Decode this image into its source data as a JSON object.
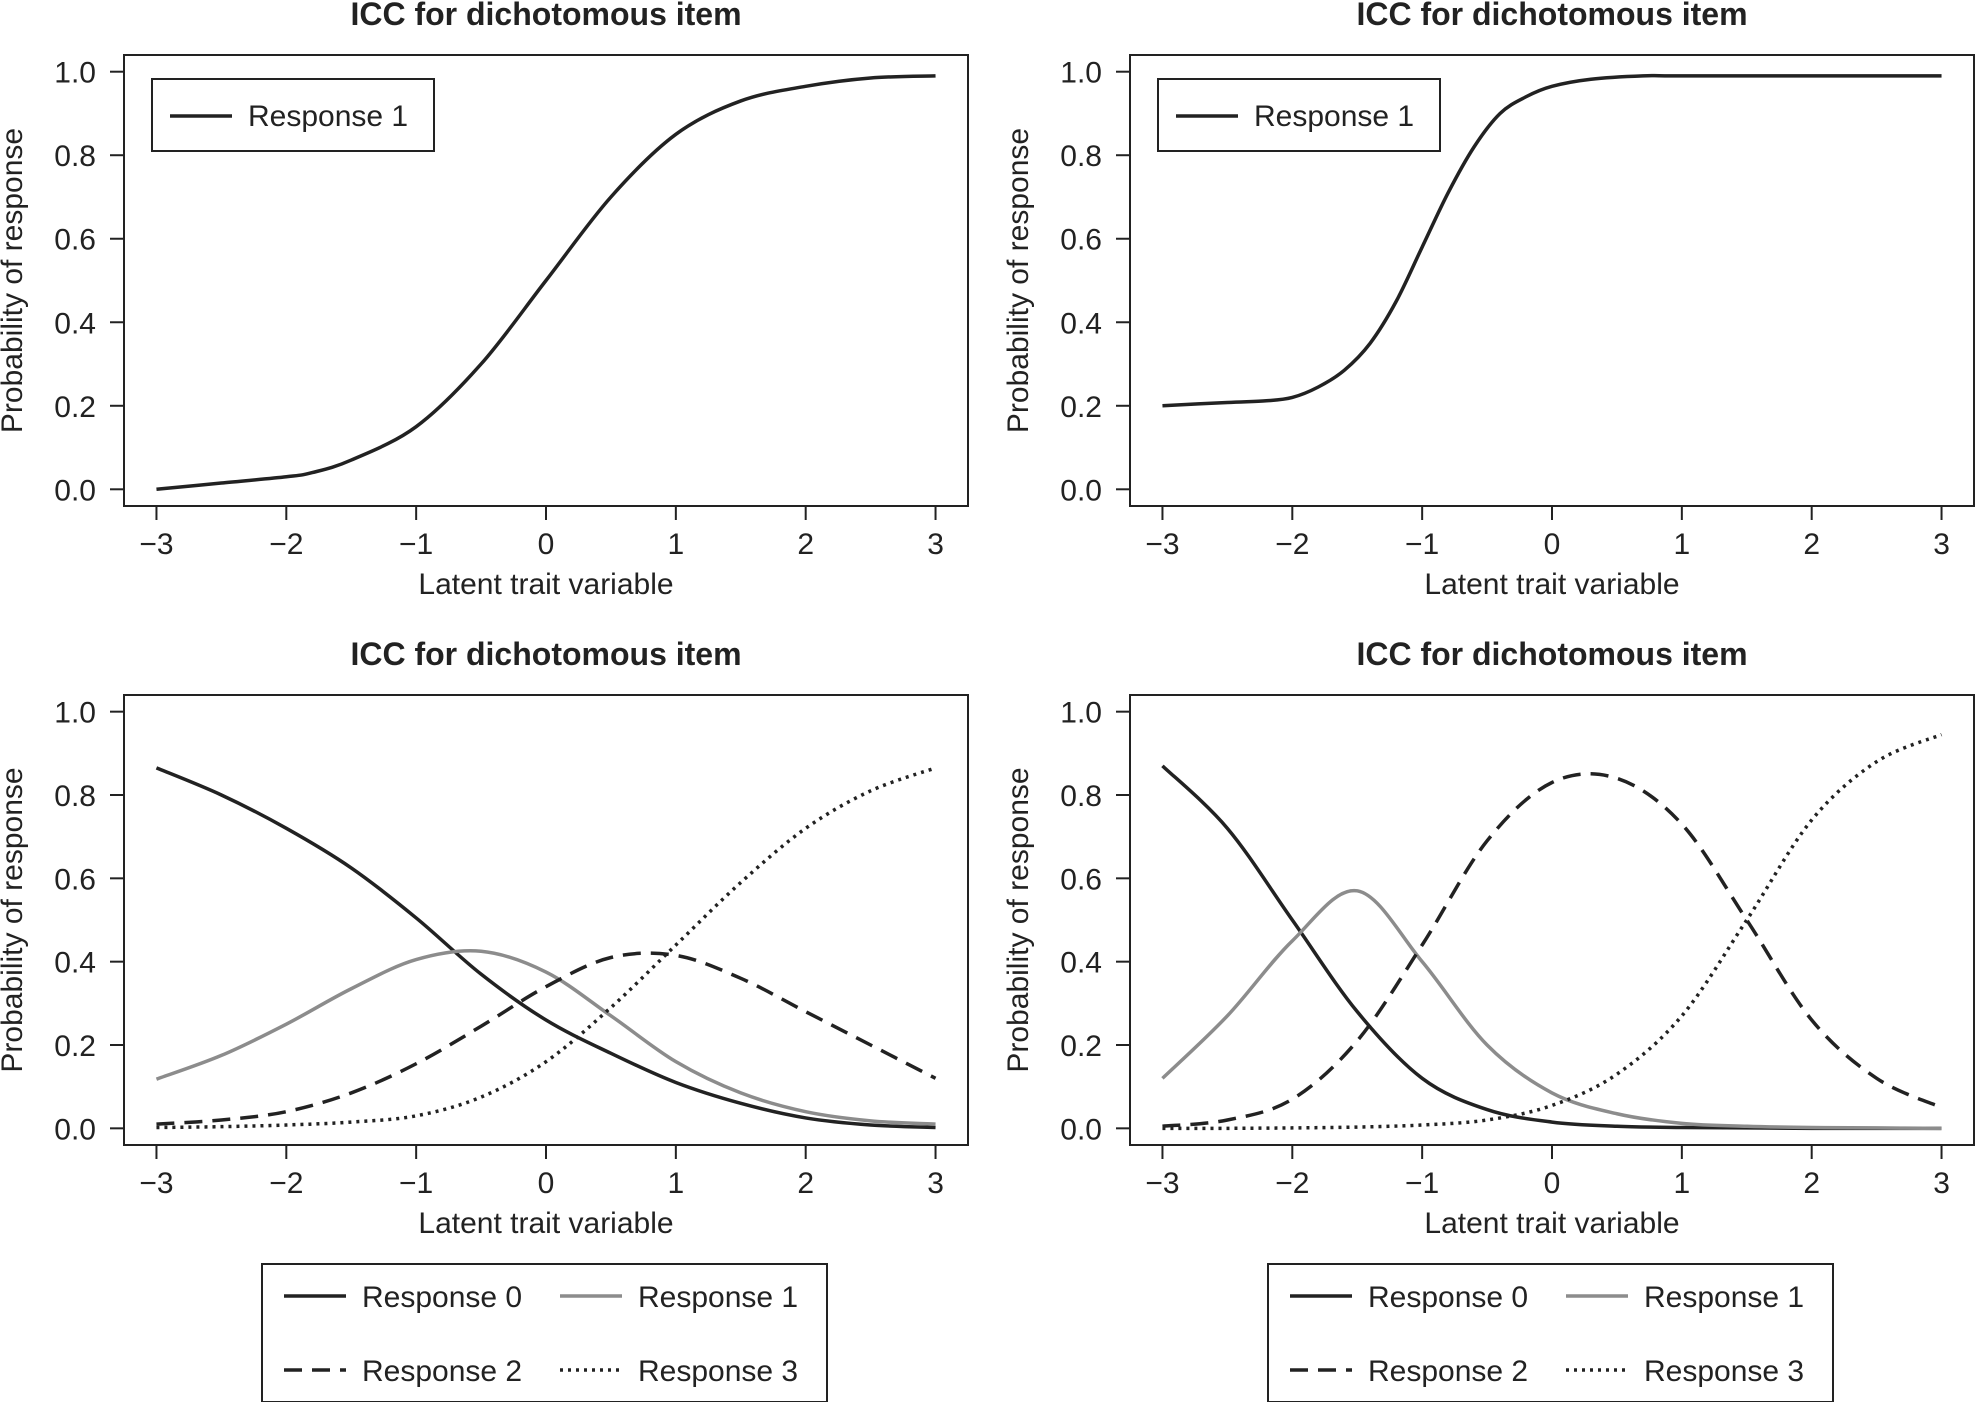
{
  "chart_data": [
    {
      "type": "line",
      "title": "ICC for dichotomous item",
      "xlabel": "Latent trait variable",
      "ylabel": "Probability of response",
      "xlim": [
        -3.25,
        3.25
      ],
      "ylim": [
        -0.04,
        1.04
      ],
      "xticks": [
        -3,
        -2,
        -1,
        0,
        1,
        2,
        3
      ],
      "xtick_labels": [
        "−3",
        "−2",
        "−1",
        "0",
        "1",
        "2",
        "3"
      ],
      "yticks": [
        0,
        0.2,
        0.4,
        0.6,
        0.8,
        1
      ],
      "ytick_labels": [
        "0.0",
        "0.2",
        "0.4",
        "0.6",
        "0.8",
        "1.0"
      ],
      "legend": {
        "placement": "top-left",
        "entries": [
          "Response 1"
        ]
      },
      "series": [
        {
          "name": "Response 1",
          "color": "#222222",
          "dash": "solid",
          "x": [
            -3,
            -2.5,
            -2,
            -1.8,
            -1.5,
            -1,
            -0.5,
            0,
            0.5,
            1,
            1.5,
            2,
            2.5,
            3
          ],
          "y": [
            0.0,
            0.015,
            0.03,
            0.04,
            0.07,
            0.15,
            0.3,
            0.5,
            0.7,
            0.85,
            0.93,
            0.965,
            0.985,
            0.99
          ]
        }
      ]
    },
    {
      "type": "line",
      "title": "ICC for dichotomous item",
      "xlabel": "Latent trait variable",
      "ylabel": "Probability of response",
      "xlim": [
        -3.25,
        3.25
      ],
      "ylim": [
        -0.04,
        1.04
      ],
      "xticks": [
        -3,
        -2,
        -1,
        0,
        1,
        2,
        3
      ],
      "xtick_labels": [
        "−3",
        "−2",
        "−1",
        "0",
        "1",
        "2",
        "3"
      ],
      "yticks": [
        0,
        0.2,
        0.4,
        0.6,
        0.8,
        1
      ],
      "ytick_labels": [
        "0.0",
        "0.2",
        "0.4",
        "0.6",
        "0.8",
        "1.0"
      ],
      "legend": {
        "placement": "top-left",
        "entries": [
          "Response 1"
        ]
      },
      "series": [
        {
          "name": "Response 1",
          "color": "#222222",
          "dash": "solid",
          "x": [
            -3,
            -2.5,
            -2.2,
            -2,
            -1.8,
            -1.6,
            -1.4,
            -1.2,
            -1,
            -0.8,
            -0.6,
            -0.4,
            -0.2,
            0,
            0.3,
            0.7,
            1,
            2,
            3
          ],
          "y": [
            0.2,
            0.208,
            0.212,
            0.22,
            0.245,
            0.285,
            0.35,
            0.45,
            0.58,
            0.71,
            0.82,
            0.9,
            0.94,
            0.965,
            0.982,
            0.99,
            0.99,
            0.99,
            0.99
          ]
        }
      ]
    },
    {
      "type": "line",
      "title": "ICC for dichotomous item",
      "xlabel": "Latent trait variable",
      "ylabel": "Probability of response",
      "xlim": [
        -3.25,
        3.25
      ],
      "ylim": [
        -0.04,
        1.04
      ],
      "xticks": [
        -3,
        -2,
        -1,
        0,
        1,
        2,
        3
      ],
      "xtick_labels": [
        "−3",
        "−2",
        "−1",
        "0",
        "1",
        "2",
        "3"
      ],
      "yticks": [
        0,
        0.2,
        0.4,
        0.6,
        0.8,
        1
      ],
      "ytick_labels": [
        "0.0",
        "0.2",
        "0.4",
        "0.6",
        "0.8",
        "1.0"
      ],
      "legend": {
        "placement": "bottom-outside",
        "entries": [
          "Response 0",
          "Response 1",
          "Response 2",
          "Response 3"
        ]
      },
      "series": [
        {
          "name": "Response 0",
          "color": "#222222",
          "dash": "solid",
          "x": [
            -3,
            -2.5,
            -2,
            -1.5,
            -1,
            -0.5,
            0,
            0.5,
            1,
            1.5,
            2,
            2.5,
            3
          ],
          "y": [
            0.865,
            0.8,
            0.72,
            0.625,
            0.505,
            0.37,
            0.26,
            0.18,
            0.11,
            0.06,
            0.025,
            0.008,
            0.002
          ]
        },
        {
          "name": "Response 1",
          "color": "#8c8c8c",
          "dash": "solid",
          "x": [
            -3,
            -2.5,
            -2,
            -1.5,
            -1,
            -0.5,
            0,
            0.5,
            1,
            1.5,
            2,
            2.5,
            3
          ],
          "y": [
            0.118,
            0.175,
            0.25,
            0.335,
            0.405,
            0.425,
            0.375,
            0.27,
            0.16,
            0.085,
            0.04,
            0.018,
            0.01
          ]
        },
        {
          "name": "Response 2",
          "color": "#222222",
          "dash": "dashed",
          "x": [
            -3,
            -2.5,
            -2,
            -1.5,
            -1,
            -0.5,
            0,
            0.5,
            1,
            1.5,
            2,
            2.5,
            3
          ],
          "y": [
            0.01,
            0.02,
            0.04,
            0.085,
            0.155,
            0.245,
            0.34,
            0.41,
            0.415,
            0.36,
            0.28,
            0.2,
            0.12
          ]
        },
        {
          "name": "Response 3",
          "color": "#222222",
          "dash": "dotted",
          "x": [
            -3,
            -2.5,
            -2,
            -1.5,
            -1,
            -0.5,
            0,
            0.5,
            1,
            1.5,
            2,
            2.5,
            3
          ],
          "y": [
            0.002,
            0.004,
            0.008,
            0.015,
            0.03,
            0.075,
            0.16,
            0.29,
            0.44,
            0.59,
            0.72,
            0.81,
            0.865
          ]
        }
      ]
    },
    {
      "type": "line",
      "title": "ICC for dichotomous item",
      "xlabel": "Latent trait variable",
      "ylabel": "Probability of response",
      "xlim": [
        -3.25,
        3.25
      ],
      "ylim": [
        -0.04,
        1.04
      ],
      "xticks": [
        -3,
        -2,
        -1,
        0,
        1,
        2,
        3
      ],
      "xtick_labels": [
        "−3",
        "−2",
        "−1",
        "0",
        "1",
        "2",
        "3"
      ],
      "yticks": [
        0,
        0.2,
        0.4,
        0.6,
        0.8,
        1
      ],
      "ytick_labels": [
        "0.0",
        "0.2",
        "0.4",
        "0.6",
        "0.8",
        "1.0"
      ],
      "legend": {
        "placement": "bottom-outside",
        "entries": [
          "Response 0",
          "Response 1",
          "Response 2",
          "Response 3"
        ]
      },
      "series": [
        {
          "name": "Response 0",
          "color": "#222222",
          "dash": "solid",
          "x": [
            -3,
            -2.5,
            -2,
            -1.5,
            -1,
            -0.5,
            0,
            0.5,
            1,
            1.5,
            2,
            2.5,
            3
          ],
          "y": [
            0.87,
            0.72,
            0.5,
            0.28,
            0.12,
            0.045,
            0.015,
            0.005,
            0.002,
            0.001,
            0.0,
            0.0,
            0.0
          ]
        },
        {
          "name": "Response 1",
          "color": "#8c8c8c",
          "dash": "solid",
          "x": [
            -3,
            -2.5,
            -2,
            -1.5,
            -1,
            -0.5,
            0,
            0.5,
            1,
            1.5,
            2,
            2.5,
            3
          ],
          "y": [
            0.12,
            0.27,
            0.45,
            0.57,
            0.4,
            0.2,
            0.085,
            0.035,
            0.012,
            0.005,
            0.002,
            0.001,
            0.0
          ]
        },
        {
          "name": "Response 2",
          "color": "#222222",
          "dash": "dashed",
          "x": [
            -3,
            -2.5,
            -2,
            -1.5,
            -1,
            -0.5,
            0,
            0.5,
            1,
            1.5,
            2,
            2.5,
            3
          ],
          "y": [
            0.005,
            0.02,
            0.07,
            0.21,
            0.44,
            0.69,
            0.83,
            0.84,
            0.73,
            0.5,
            0.26,
            0.12,
            0.05
          ]
        },
        {
          "name": "Response 3",
          "color": "#222222",
          "dash": "dotted",
          "x": [
            -3,
            -2.5,
            -2,
            -1.5,
            -1,
            -0.5,
            0,
            0.5,
            1,
            1.5,
            2,
            2.5,
            3
          ],
          "y": [
            0.0,
            0.0,
            0.001,
            0.003,
            0.008,
            0.02,
            0.055,
            0.13,
            0.27,
            0.5,
            0.74,
            0.88,
            0.945
          ]
        }
      ]
    }
  ]
}
